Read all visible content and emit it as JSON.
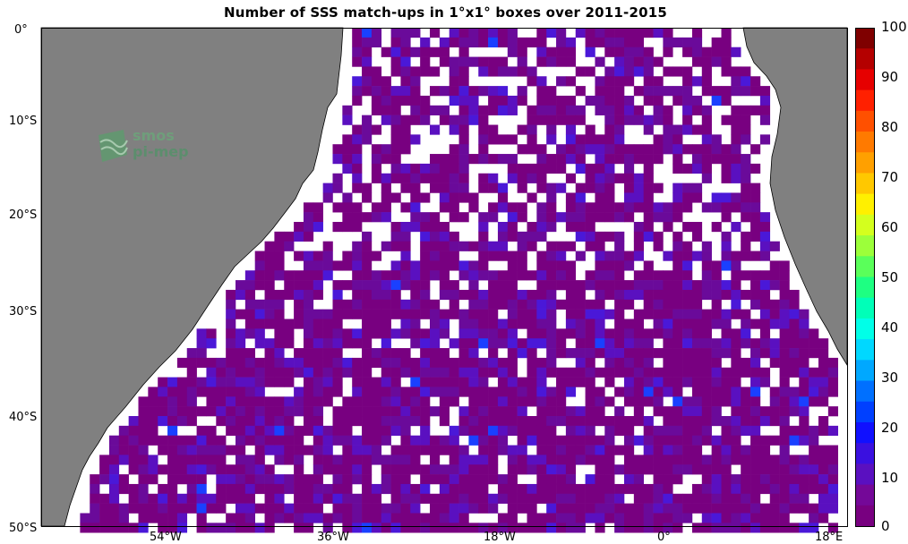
{
  "title": "Number of SSS match-ups in 1°x1° boxes over 2011-2015",
  "map": {
    "lat_labels": [
      "0°",
      "10°S",
      "20°S",
      "30°S",
      "40°S",
      "50°S"
    ],
    "lon_labels": [
      "54°W",
      "36°W",
      "18°W",
      "0°",
      "18°E"
    ],
    "land_color": "#808080",
    "ocean_color": "#ffffff",
    "grid_cells": "1° x 1°",
    "extent": {
      "lon_min": -63,
      "lon_max": 20,
      "lat_min": -50,
      "lat_max": 0
    },
    "dominant_value_range": [
      0,
      5
    ]
  },
  "colorbar": {
    "ticks": [
      "100",
      "90",
      "80",
      "70",
      "60",
      "50",
      "40",
      "30",
      "20",
      "10",
      "0"
    ],
    "range": [
      0,
      100
    ],
    "colors": [
      "#7f0000",
      "#b40000",
      "#e60000",
      "#ff2000",
      "#ff5000",
      "#ff7a00",
      "#ffa000",
      "#ffc800",
      "#fff000",
      "#d4ff1e",
      "#9cff3a",
      "#5aff5a",
      "#1eff82",
      "#00ffb8",
      "#00ffe8",
      "#00d8ff",
      "#00a8ff",
      "#0070ff",
      "#0040ff",
      "#1010ff",
      "#3a10e0",
      "#5a10c0",
      "#740898",
      "#780080"
    ]
  },
  "logo": {
    "line1": "smos",
    "line2": "pi-mep"
  }
}
